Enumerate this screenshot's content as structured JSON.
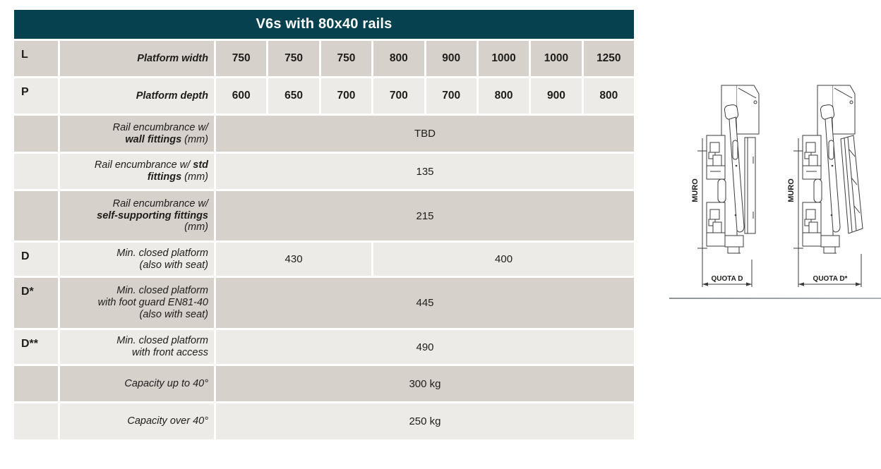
{
  "title": "V6s with 80x40 rails",
  "colors": {
    "header_bg": "#06414f",
    "row_dark": "#d7d1cc",
    "row_light": "#edebe8"
  },
  "table": {
    "rows": [
      {
        "key": "L",
        "label": [
          {
            "t": "Platform width",
            "b": true
          }
        ],
        "cells": [
          {
            "v": "750",
            "span": 1,
            "bold": true
          },
          {
            "v": "750",
            "span": 1,
            "bold": true
          },
          {
            "v": "750",
            "span": 1,
            "bold": true
          },
          {
            "v": "800",
            "span": 1,
            "bold": true
          },
          {
            "v": "900",
            "span": 1,
            "bold": true
          },
          {
            "v": "1000",
            "span": 1,
            "bold": true
          },
          {
            "v": "1000",
            "span": 1,
            "bold": true
          },
          {
            "v": "1250",
            "span": 1,
            "bold": true
          }
        ]
      },
      {
        "key": "P",
        "label": [
          {
            "t": "Platform depth",
            "b": true
          }
        ],
        "cells": [
          {
            "v": "600",
            "span": 1,
            "bold": true
          },
          {
            "v": "650",
            "span": 1,
            "bold": true
          },
          {
            "v": "700",
            "span": 1,
            "bold": true
          },
          {
            "v": "700",
            "span": 1,
            "bold": true
          },
          {
            "v": "700",
            "span": 1,
            "bold": true
          },
          {
            "v": "800",
            "span": 1,
            "bold": true
          },
          {
            "v": "900",
            "span": 1,
            "bold": true
          },
          {
            "v": "800",
            "span": 1,
            "bold": true
          }
        ]
      },
      {
        "key": "",
        "label": [
          {
            "t": "Rail encumbrance w/\n",
            "b": false
          },
          {
            "t": "wall fittings",
            "b": true
          },
          {
            "t": " (mm)",
            "b": false
          }
        ],
        "cells": [
          {
            "v": "TBD",
            "span": 8,
            "bold": false
          }
        ]
      },
      {
        "key": "",
        "label": [
          {
            "t": "Rail encumbrance w/ ",
            "b": false
          },
          {
            "t": "std\nfittings",
            "b": true
          },
          {
            "t": " (mm)",
            "b": false
          }
        ],
        "cells": [
          {
            "v": "135",
            "span": 8,
            "bold": false
          }
        ]
      },
      {
        "key": "",
        "label": [
          {
            "t": "Rail encumbrance w/\n",
            "b": false
          },
          {
            "t": "self-supporting fittings",
            "b": true
          },
          {
            "t": "\n(mm)",
            "b": false
          }
        ],
        "cells": [
          {
            "v": "215",
            "span": 8,
            "bold": false
          }
        ]
      },
      {
        "key": "D",
        "label": [
          {
            "t": "Min. closed platform\n(also with seat)",
            "b": false
          }
        ],
        "cells": [
          {
            "v": "430",
            "span": 3,
            "bold": false
          },
          {
            "v": "400",
            "span": 5,
            "bold": false
          }
        ]
      },
      {
        "key": "D*",
        "label": [
          {
            "t": "Min. closed platform\nwith foot guard EN81-40\n(also with seat)",
            "b": false
          }
        ],
        "cells": [
          {
            "v": "445",
            "span": 8,
            "bold": false
          }
        ]
      },
      {
        "key": "D**",
        "label": [
          {
            "t": "Min. closed platform\nwith front access",
            "b": false
          }
        ],
        "cells": [
          {
            "v": "490",
            "span": 8,
            "bold": false
          }
        ]
      },
      {
        "key": "",
        "label": [
          {
            "t": "Capacity up to 40°",
            "b": false
          }
        ],
        "cells": [
          {
            "v": "300 kg",
            "span": 8,
            "bold": false
          }
        ]
      },
      {
        "key": "",
        "label": [
          {
            "t": "Capacity over 40°",
            "b": false
          }
        ],
        "cells": [
          {
            "v": "250 kg",
            "span": 8,
            "bold": false
          }
        ]
      }
    ]
  },
  "diagrams": [
    {
      "wall_label": "MURO",
      "dimension_label": "QUOTA D"
    },
    {
      "wall_label": "MURO",
      "dimension_label": "QUOTA D*"
    }
  ]
}
